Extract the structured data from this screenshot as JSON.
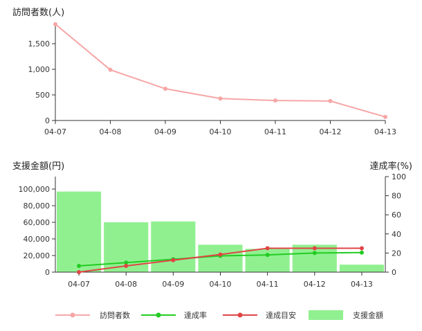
{
  "charts": {
    "top": {
      "title": "訪問者数(人)"
    },
    "bottom": {
      "title_left": "支援金額(円)",
      "title_right": "達成率(%)"
    }
  },
  "legend": {
    "visitors": "訪問者数",
    "rate": "達成率",
    "target": "達成目安",
    "amount": "支援金額"
  },
  "colors": {
    "visitors": "#f7a6a6",
    "rate": "#22cc22",
    "target": "#e04545",
    "amount": "#90f090",
    "axis": "#333333"
  },
  "chart_data": [
    {
      "type": "line",
      "title": "訪問者数(人)",
      "categories": [
        "04-07",
        "04-08",
        "04-09",
        "04-10",
        "04-11",
        "04-12",
        "04-13"
      ],
      "ylim": [
        0,
        1880
      ],
      "yticks": [
        "0",
        "500",
        "1,000",
        "1,500"
      ],
      "series": [
        {
          "name": "訪問者数",
          "values": [
            1880,
            990,
            620,
            430,
            390,
            380,
            70
          ]
        }
      ]
    },
    {
      "type": "bar",
      "title": "支援金額(円)",
      "right_axis_title": "達成率(%)",
      "categories": [
        "04-07",
        "04-08",
        "04-09",
        "04-10",
        "04-11",
        "04-12",
        "04-13"
      ],
      "ylim": [
        0,
        115000
      ],
      "yticks": [
        "0",
        "20,000",
        "40,000",
        "60,000",
        "80,000",
        "100,000"
      ],
      "y2lim": [
        0,
        100
      ],
      "y2ticks": [
        "0",
        "20",
        "40",
        "60",
        "80",
        "100"
      ],
      "series": [
        {
          "name": "支援金額",
          "type": "bar",
          "axis": "left",
          "values": [
            97000,
            60000,
            61000,
            33000,
            28000,
            33000,
            9000
          ]
        },
        {
          "name": "達成率",
          "type": "line",
          "axis": "right",
          "values": [
            6.5,
            10,
            13.5,
            17,
            18,
            20,
            20.5
          ]
        },
        {
          "name": "達成目安",
          "type": "line",
          "axis": "right",
          "values": [
            0,
            6.5,
            12.5,
            18.5,
            25,
            25,
            25
          ]
        }
      ]
    }
  ]
}
